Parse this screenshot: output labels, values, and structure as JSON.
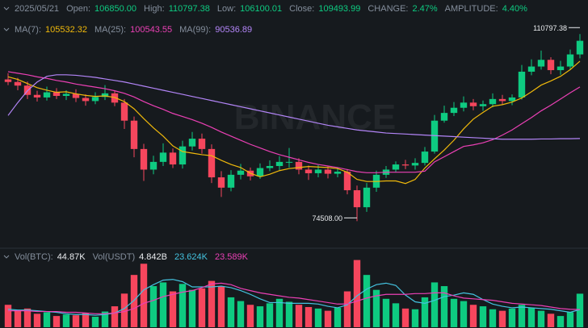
{
  "chart_data": {
    "type": "candlestick",
    "header": {
      "date": "2025/05/21",
      "fields": [
        {
          "label": "Open:",
          "value": "106850.00"
        },
        {
          "label": "High:",
          "value": "110797.38"
        },
        {
          "label": "Low:",
          "value": "106100.01"
        },
        {
          "label": "Close:",
          "value": "109493.99"
        },
        {
          "label": "CHANGE:",
          "value": "2.47%"
        },
        {
          "label": "AMPLITUDE:",
          "value": "4.40%"
        }
      ]
    },
    "watermark": "BINANCE",
    "up_color": "#0ecb81",
    "down_color": "#f6465d",
    "ylim": [
      70500,
      113500
    ],
    "high_label": "110797.38",
    "low_label": "74508.00",
    "open": [
      102000,
      101500,
      100800,
      99000,
      98500,
      99500,
      98800,
      99200,
      98400,
      97800,
      98600,
      99300,
      97500,
      94000,
      88500,
      84500,
      86000,
      87800,
      85500,
      89000,
      90500,
      88500,
      83000,
      81000,
      83500,
      84300,
      83200,
      84800,
      85200,
      86000,
      86000,
      84500,
      83800,
      84500,
      83700,
      84100,
      80500,
      77200,
      81000,
      83500,
      84500,
      85500,
      85300,
      85800,
      88000,
      94000,
      95500,
      96500,
      97500,
      96800,
      97200,
      98200,
      97800,
      98500,
      103500,
      104500,
      105800,
      103800,
      104500,
      106850
    ],
    "high": [
      103200,
      102300,
      101600,
      99800,
      100600,
      100300,
      99900,
      100100,
      99100,
      99500,
      100900,
      99800,
      98200,
      94800,
      89500,
      87200,
      89600,
      88600,
      90100,
      91800,
      91500,
      89400,
      84200,
      84400,
      85600,
      84900,
      85700,
      86300,
      87100,
      88700,
      86700,
      85300,
      85400,
      85100,
      84900,
      84600,
      81400,
      81900,
      84300,
      85200,
      86100,
      86400,
      86700,
      88900,
      95100,
      96900,
      97600,
      98700,
      98200,
      97900,
      99300,
      99000,
      99100,
      104800,
      105900,
      107600,
      106300,
      105600,
      107800,
      110797.38
    ],
    "low": [
      100900,
      99900,
      98200,
      97700,
      97900,
      98200,
      98000,
      97600,
      96900,
      97200,
      98000,
      96800,
      92400,
      86900,
      82300,
      83600,
      85200,
      84800,
      84700,
      88200,
      87600,
      81900,
      79200,
      80300,
      82600,
      82400,
      82700,
      84200,
      84400,
      84900,
      83600,
      82500,
      83000,
      82800,
      83000,
      79700,
      74508,
      76300,
      80200,
      82900,
      84000,
      84600,
      84500,
      85300,
      87600,
      93600,
      94900,
      95800,
      96000,
      95900,
      96600,
      97100,
      97000,
      98100,
      102800,
      103900,
      103000,
      102900,
      104000,
      106100.01
    ],
    "close": [
      101500,
      100800,
      99000,
      98500,
      99500,
      98800,
      99200,
      98400,
      97800,
      98600,
      99300,
      97500,
      94000,
      88500,
      84500,
      86000,
      87800,
      85500,
      89000,
      90500,
      88500,
      83000,
      81000,
      83500,
      84300,
      83200,
      84800,
      85200,
      86000,
      86000,
      84500,
      83800,
      84500,
      83700,
      84100,
      80500,
      77200,
      81000,
      83500,
      84500,
      85500,
      85300,
      85800,
      88000,
      94000,
      95500,
      96500,
      97500,
      96800,
      97200,
      98200,
      97800,
      98500,
      103500,
      104500,
      105800,
      103800,
      104500,
      106850,
      109493.99
    ],
    "ma": [
      {
        "label": "MA(7):",
        "value_label": "105532.32",
        "color": "#f0b90b",
        "values": [
          102500,
          102000,
          101200,
          100400,
          99900,
          99500,
          99600,
          99200,
          98900,
          98700,
          98800,
          98500,
          97700,
          96300,
          94400,
          92600,
          91000,
          89100,
          88000,
          87700,
          87400,
          87200,
          86300,
          85500,
          84900,
          83800,
          83100,
          83600,
          84300,
          84700,
          84900,
          85100,
          85000,
          84900,
          84700,
          84000,
          82600,
          82200,
          82200,
          82300,
          82300,
          81800,
          82600,
          84800,
          86600,
          88300,
          90200,
          92400,
          94300,
          95600,
          96800,
          97100,
          97600,
          98400,
          99600,
          100900,
          101700,
          102600,
          103900,
          105532.32
        ]
      },
      {
        "label": "MA(25):",
        "value_label": "100543.55",
        "color": "#eb40b5",
        "values": [
          103500,
          103200,
          102900,
          102500,
          102200,
          101800,
          101500,
          101100,
          100800,
          100500,
          100200,
          99800,
          99300,
          98600,
          97700,
          96900,
          96200,
          95400,
          94800,
          94200,
          93500,
          92700,
          91800,
          91000,
          90200,
          89400,
          88700,
          88000,
          87400,
          86900,
          86400,
          85900,
          85500,
          85200,
          84900,
          84500,
          84100,
          83900,
          83900,
          84000,
          84000,
          84000,
          84000,
          84200,
          86000,
          87000,
          88000,
          89000,
          89300,
          89700,
          90300,
          91200,
          92200,
          93400,
          94600,
          95900,
          97000,
          98200,
          99400,
          100543.55
        ]
      },
      {
        "label": "MA(99):",
        "value_label": "90536.89",
        "color": "#b385f8",
        "values": [
          95000,
          97500,
          99800,
          101500,
          102600,
          102900,
          102900,
          102800,
          102600,
          102400,
          102100,
          101800,
          101500,
          101100,
          100700,
          100300,
          99900,
          99500,
          99100,
          98700,
          98300,
          97900,
          97500,
          97100,
          96700,
          96300,
          95900,
          95500,
          95100,
          94700,
          94300,
          93900,
          93500,
          93100,
          92800,
          92500,
          92200,
          92000,
          91800,
          91600,
          91500,
          91400,
          91300,
          91200,
          91100,
          91000,
          90900,
          90800,
          90700,
          90600,
          90500,
          90400,
          90400,
          90400,
          90400,
          90450,
          90450,
          90500,
          90500,
          90536.89
        ]
      }
    ],
    "volume": {
      "label": "Vol(BTC):",
      "value_label": "44.87K",
      "quote_label": "Vol(USDT)",
      "quote_value_label": "4.842B",
      "ylim": [
        0,
        95
      ],
      "values": [
        30,
        22,
        25,
        18,
        20,
        15,
        17,
        16,
        19,
        14,
        21,
        28,
        45,
        70,
        85,
        55,
        60,
        48,
        58,
        50,
        52,
        62,
        55,
        40,
        35,
        30,
        28,
        32,
        38,
        34,
        30,
        27,
        25,
        22,
        26,
        48,
        90,
        70,
        50,
        38,
        32,
        25,
        24,
        40,
        60,
        55,
        38,
        35,
        30,
        28,
        24,
        22,
        25,
        30,
        26,
        22,
        18,
        15,
        20,
        44.87
      ],
      "ma": [
        {
          "value_label": "23.624K",
          "color": "#44c3e0",
          "values": [
            24,
            23,
            23,
            22,
            21,
            20,
            18,
            17,
            17,
            16,
            17,
            19,
            25,
            36,
            50,
            57,
            63,
            64,
            61,
            54,
            54,
            54,
            55,
            53,
            49,
            44,
            38,
            33,
            33,
            32,
            32,
            32,
            31,
            28,
            26,
            30,
            42,
            51,
            57,
            59,
            56,
            43,
            34,
            32,
            36,
            41,
            43,
            46,
            44,
            37,
            31,
            28,
            26,
            27,
            26,
            25,
            24,
            22,
            20,
            23.624
          ]
        },
        {
          "value_label": "23.589K",
          "color": "#eb40b5",
          "values": [
            22,
            22,
            22,
            21,
            21,
            21,
            20,
            20,
            19,
            18,
            18,
            19,
            21,
            25,
            32,
            36,
            41,
            44,
            47,
            49,
            53,
            58,
            59,
            57,
            52,
            49,
            46,
            44,
            42,
            40,
            39,
            37,
            35,
            33,
            31,
            31,
            35,
            39,
            42,
            44,
            44,
            44,
            45,
            45,
            46,
            46,
            42,
            39,
            38,
            37,
            36,
            34,
            32,
            31,
            30,
            29,
            27,
            25,
            24,
            23.589
          ]
        }
      ]
    }
  }
}
